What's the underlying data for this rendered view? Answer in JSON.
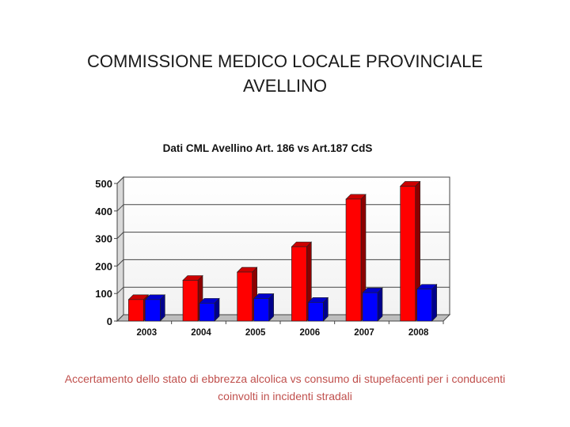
{
  "slide": {
    "title_line1": "COMMISSIONE MEDICO LOCALE PROVINCIALE",
    "title_line2": "AVELLINO",
    "caption_line1": "Accertamento dello stato di ebbrezza alcolica vs consumo di stupefacenti per i conducenti",
    "caption_line2": "coinvolti in incidenti stradali"
  },
  "chart_data": {
    "type": "bar",
    "title": "Dati CML Avellino Art. 186 vs Art.187 CdS",
    "xlabel": "",
    "ylabel": "",
    "categories": [
      "2003",
      "2004",
      "2005",
      "2006",
      "2007",
      "2008"
    ],
    "series": [
      {
        "values": [
          78,
          148,
          178,
          270,
          443,
          490
        ],
        "color": "#ff0000"
      },
      {
        "values": [
          78,
          65,
          82,
          68,
          103,
          116
        ],
        "color": "#0000ff"
      }
    ],
    "ylim": [
      0,
      500
    ],
    "yticks": [
      0,
      100,
      200,
      300,
      400,
      500
    ],
    "grid": true,
    "legend": "none",
    "bar_style": "3d"
  }
}
